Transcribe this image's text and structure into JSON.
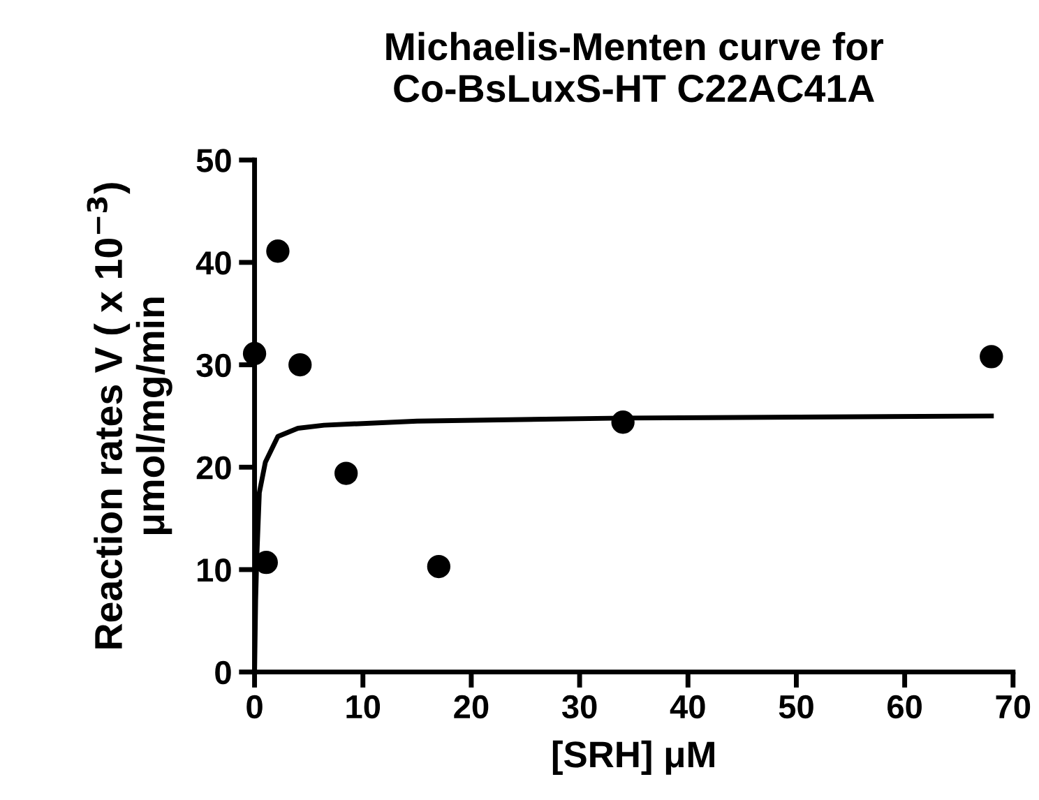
{
  "chart_data": {
    "type": "scatter",
    "title": "Michaelis-Menten curve for\nCo-BsLuxS-HT C22AC41A",
    "xlabel": "[SRH] μM",
    "ylabel": "Reaction rates V ( x 10$^{−3}$)\nμmol/mg/min",
    "series": [
      {
        "color": "#000000",
        "marker": "circle",
        "x": [
          0,
          1.08,
          2.15,
          4.2,
          8.45,
          17,
          34,
          68
        ],
        "values": [
          31.1,
          10.7,
          41.1,
          30.0,
          19.4,
          10.3,
          24.4,
          30.8
        ]
      },
      {
        "type": "line",
        "color": "#000000",
        "marker": "none",
        "line_style": "solid",
        "x": [
          0,
          0.1,
          0.2,
          0.44,
          1,
          2.15,
          4,
          6.4,
          15,
          34,
          68
        ],
        "values": [
          0,
          7,
          11,
          17.5,
          20.5,
          23,
          23.8,
          24.1,
          24.5,
          24.8,
          25
        ]
      }
    ],
    "xlim": [
      0,
      70
    ],
    "xticks": [
      0,
      10,
      20,
      30,
      40,
      50,
      60,
      70
    ],
    "ylim": [
      0,
      50
    ],
    "yticks": [
      0,
      10,
      20,
      30,
      40,
      50
    ],
    "grid": false,
    "legend": false
  }
}
